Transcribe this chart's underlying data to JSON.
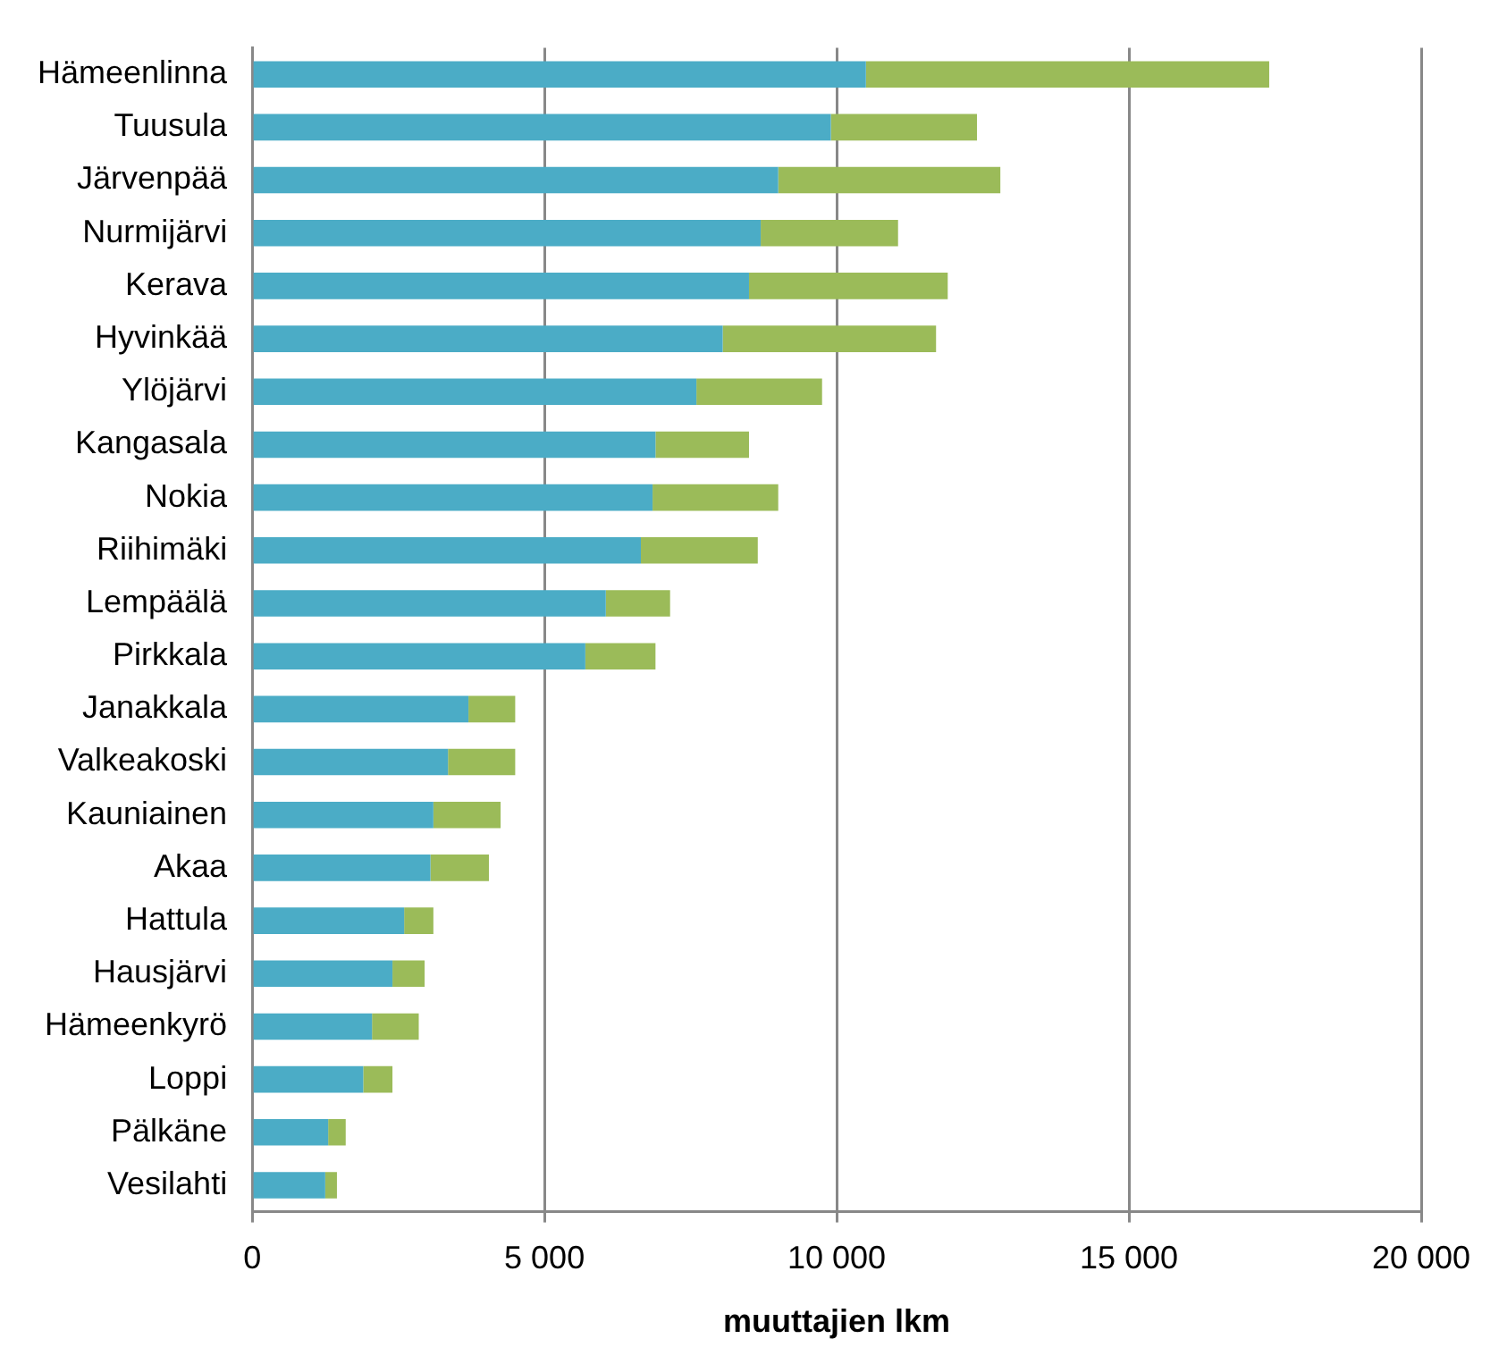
{
  "chart_data": {
    "type": "bar",
    "orientation": "horizontal",
    "stacked": true,
    "xlabel": "muuttajien lkm",
    "categories": [
      "Hämeenlinna",
      "Tuusula",
      "Järvenpää",
      "Nurmijärvi",
      "Kerava",
      "Hyvinkää",
      "Ylöjärvi",
      "Kangasala",
      "Nokia",
      "Riihimäki",
      "Lempäälä",
      "Pirkkala",
      "Janakkala",
      "Valkeakoski",
      "Kauniainen",
      "Akaa",
      "Hattula",
      "Hausjärvi",
      "Hämeenkyrö",
      "Loppi",
      "Pälkäne",
      "Vesilahti"
    ],
    "series": [
      {
        "color": "#4bacc6",
        "values": [
          10500,
          9900,
          9000,
          8700,
          8500,
          8050,
          7600,
          6900,
          6850,
          6650,
          6050,
          5700,
          3700,
          3350,
          3100,
          3050,
          2600,
          2400,
          2050,
          1900,
          1300,
          1250
        ]
      },
      {
        "color": "#9bbb59",
        "values": [
          6900,
          2500,
          3800,
          2350,
          3400,
          3650,
          2150,
          1600,
          2150,
          2000,
          1100,
          1200,
          800,
          1150,
          1150,
          1000,
          500,
          550,
          800,
          500,
          300,
          200
        ]
      }
    ],
    "xlim": [
      0,
      20000
    ],
    "xticks": [
      0,
      {
        "value": 5000,
        "label": "5 000"
      },
      {
        "value": 10000,
        "label": "10 000"
      },
      {
        "value": 15000,
        "label": "15 000"
      },
      {
        "value": 20000,
        "label": "20 000"
      }
    ],
    "grid": "x",
    "legend": false
  }
}
